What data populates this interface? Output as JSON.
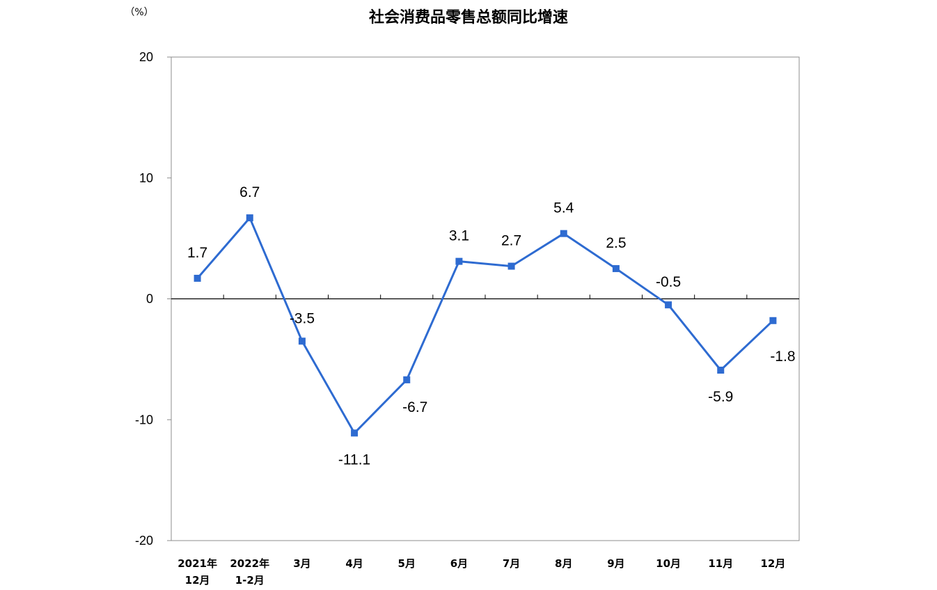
{
  "chart_data": {
    "type": "line",
    "title": "社会消费品零售总额同比增速",
    "unit_label": "（%）",
    "ylim": [
      -20,
      20
    ],
    "yticks": [
      {
        "value": 20,
        "label": "20"
      },
      {
        "value": 10,
        "label": "10"
      },
      {
        "value": 0,
        "label": "0"
      },
      {
        "value": -10,
        "label": "-10"
      },
      {
        "value": -20,
        "label": "-20"
      }
    ],
    "categories": [
      [
        "2021年",
        "12月"
      ],
      [
        "2022年",
        "1-2月"
      ],
      [
        "3月"
      ],
      [
        "4月"
      ],
      [
        "5月"
      ],
      [
        "6月"
      ],
      [
        "7月"
      ],
      [
        "8月"
      ],
      [
        "9月"
      ],
      [
        "10月"
      ],
      [
        "11月"
      ],
      [
        "12月"
      ]
    ],
    "series": [
      {
        "values": [
          1.7,
          6.7,
          -3.5,
          -11.1,
          -6.7,
          3.1,
          2.7,
          5.4,
          2.5,
          -0.5,
          -5.9,
          -1.8
        ],
        "labels": [
          "1.7",
          "6.7",
          "-3.5",
          "-11.1",
          "-6.7",
          "3.1",
          "2.7",
          "5.4",
          "2.5",
          "-0.5",
          "-5.9",
          "-1.8"
        ],
        "color": "#2e6bd1"
      }
    ],
    "grid": false,
    "legend": "none"
  }
}
